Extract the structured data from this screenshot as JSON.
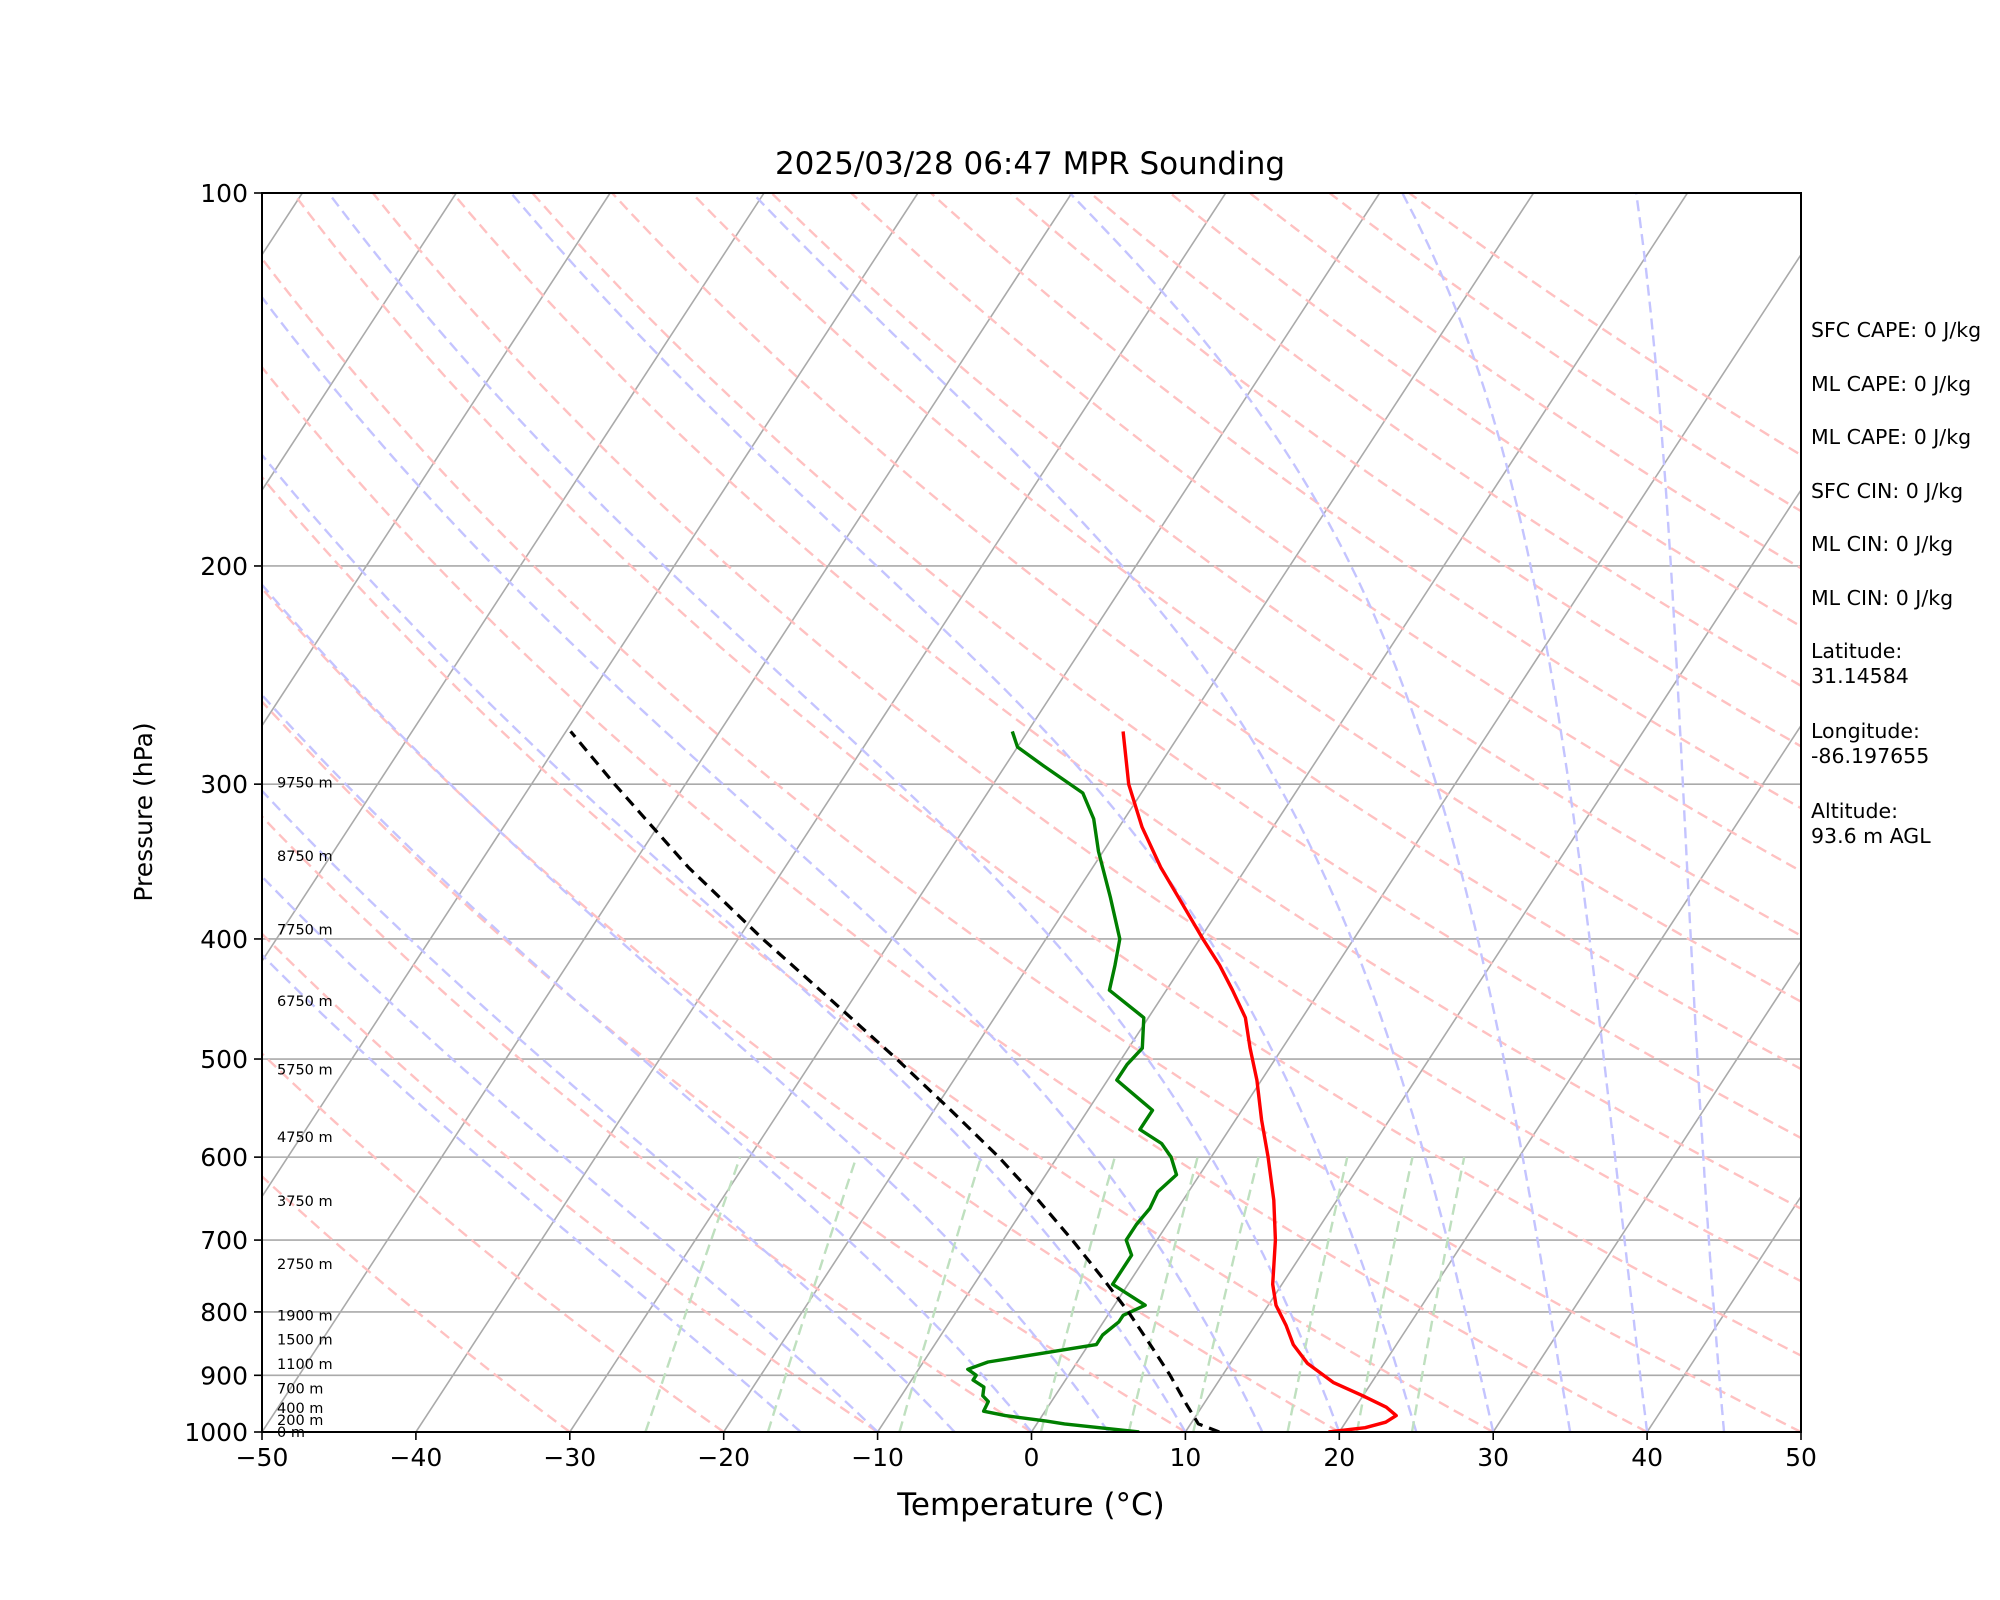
{
  "chart_data": {
    "type": "line",
    "title": "2025/03/28 06:47 MPR Sounding",
    "xlabel": "Temperature (°C)",
    "ylabel": "Pressure (hPa)",
    "xlim": [
      -50,
      50
    ],
    "ylim": [
      1000,
      100
    ],
    "y_scale": "log",
    "x_ticks": [
      "−50",
      "−40",
      "−30",
      "−20",
      "−10",
      "0",
      "10",
      "20",
      "30",
      "40",
      "50"
    ],
    "y_ticks": [
      100,
      200,
      300,
      400,
      500,
      600,
      700,
      800,
      900,
      1000
    ],
    "height_labels": [
      {
        "label": "0 m",
        "pressure": 1000
      },
      {
        "label": "200 m",
        "pressure": 978
      },
      {
        "label": "400 m",
        "pressure": 956
      },
      {
        "label": "700 m",
        "pressure": 922
      },
      {
        "label": "1100 m",
        "pressure": 881
      },
      {
        "label": "1500 m",
        "pressure": 842
      },
      {
        "label": "1900 m",
        "pressure": 805
      },
      {
        "label": "2750 m",
        "pressure": 732
      },
      {
        "label": "3750 m",
        "pressure": 651
      },
      {
        "label": "4750 m",
        "pressure": 578
      },
      {
        "label": "5750 m",
        "pressure": 510
      },
      {
        "label": "6750 m",
        "pressure": 449
      },
      {
        "label": "7750 m",
        "pressure": 393
      },
      {
        "label": "8750 m",
        "pressure": 343
      },
      {
        "label": "9750 m",
        "pressure": 299
      }
    ],
    "series": [
      {
        "color": "#ff0000",
        "points": [
          {
            "p": 1000,
            "t": 19.3
          },
          {
            "p": 992,
            "t": 21.5
          },
          {
            "p": 982,
            "t": 22.6
          },
          {
            "p": 970,
            "t": 23.0
          },
          {
            "p": 955,
            "t": 22.0
          },
          {
            "p": 935,
            "t": 20.0
          },
          {
            "p": 912,
            "t": 17.5
          },
          {
            "p": 880,
            "t": 15.0
          },
          {
            "p": 850,
            "t": 13.3
          },
          {
            "p": 820,
            "t": 12.0
          },
          {
            "p": 790,
            "t": 10.5
          },
          {
            "p": 760,
            "t": 9.4
          },
          {
            "p": 700,
            "t": 7.7
          },
          {
            "p": 650,
            "t": 5.9
          },
          {
            "p": 600,
            "t": 3.7
          },
          {
            "p": 560,
            "t": 1.7
          },
          {
            "p": 520,
            "t": -0.3
          },
          {
            "p": 490,
            "t": -2.1
          },
          {
            "p": 463,
            "t": -3.7
          },
          {
            "p": 440,
            "t": -5.7
          },
          {
            "p": 420,
            "t": -7.6
          },
          {
            "p": 400,
            "t": -9.8
          },
          {
            "p": 375,
            "t": -12.6
          },
          {
            "p": 350,
            "t": -15.6
          },
          {
            "p": 325,
            "t": -18.5
          },
          {
            "p": 300,
            "t": -21.2
          },
          {
            "p": 272,
            "t": -23.8
          }
        ]
      },
      {
        "color": "#007f00",
        "points": [
          {
            "p": 1000,
            "t": 7.0
          },
          {
            "p": 990,
            "t": 3.5
          },
          {
            "p": 985,
            "t": 1.8
          },
          {
            "p": 980,
            "t": 0.5
          },
          {
            "p": 970,
            "t": -2.4
          },
          {
            "p": 962,
            "t": -4.0
          },
          {
            "p": 945,
            "t": -4.1
          },
          {
            "p": 935,
            "t": -4.7
          },
          {
            "p": 920,
            "t": -5.0
          },
          {
            "p": 908,
            "t": -6.0
          },
          {
            "p": 900,
            "t": -6.0
          },
          {
            "p": 890,
            "t": -6.8
          },
          {
            "p": 878,
            "t": -5.8
          },
          {
            "p": 850,
            "t": 0.5
          },
          {
            "p": 835,
            "t": 0.5
          },
          {
            "p": 815,
            "t": 1.0
          },
          {
            "p": 805,
            "t": 1.0
          },
          {
            "p": 790,
            "t": 2.0
          },
          {
            "p": 760,
            "t": -1.0
          },
          {
            "p": 720,
            "t": -1.0
          },
          {
            "p": 700,
            "t": -2.0
          },
          {
            "p": 680,
            "t": -2.0
          },
          {
            "p": 660,
            "t": -1.8
          },
          {
            "p": 640,
            "t": -2.0
          },
          {
            "p": 620,
            "t": -1.5
          },
          {
            "p": 600,
            "t": -2.6
          },
          {
            "p": 585,
            "t": -3.8
          },
          {
            "p": 570,
            "t": -5.8
          },
          {
            "p": 550,
            "t": -5.8
          },
          {
            "p": 520,
            "t": -9.4
          },
          {
            "p": 505,
            "t": -9.4
          },
          {
            "p": 490,
            "t": -9.1
          },
          {
            "p": 463,
            "t": -10.3
          },
          {
            "p": 440,
            "t": -13.7
          },
          {
            "p": 420,
            "t": -14.4
          },
          {
            "p": 400,
            "t": -15.2
          },
          {
            "p": 370,
            "t": -17.6
          },
          {
            "p": 340,
            "t": -20.3
          },
          {
            "p": 320,
            "t": -22.0
          },
          {
            "p": 305,
            "t": -23.8
          },
          {
            "p": 290,
            "t": -27.5
          },
          {
            "p": 280,
            "t": -30.0
          },
          {
            "p": 272,
            "t": -31.0
          }
        ]
      },
      {
        "color": "#000000",
        "dashed": true,
        "points": [
          {
            "p": 1000,
            "t": 12.2
          },
          {
            "p": 985,
            "t": 10.5
          },
          {
            "p": 950,
            "t": 8.9
          },
          {
            "p": 900,
            "t": 6.6
          },
          {
            "p": 850,
            "t": 4.0
          },
          {
            "p": 800,
            "t": 1.2
          },
          {
            "p": 750,
            "t": -2.0
          },
          {
            "p": 700,
            "t": -5.5
          },
          {
            "p": 650,
            "t": -9.4
          },
          {
            "p": 600,
            "t": -13.8
          },
          {
            "p": 550,
            "t": -18.9
          },
          {
            "p": 500,
            "t": -24.6
          },
          {
            "p": 450,
            "t": -31.1
          },
          {
            "p": 400,
            "t": -38.4
          },
          {
            "p": 350,
            "t": -46.3
          },
          {
            "p": 300,
            "t": -54.6
          },
          {
            "p": 272,
            "t": -59.7
          }
        ]
      }
    ],
    "dry_adiabats_theta_c": [
      -30,
      -20,
      -10,
      0,
      10,
      20,
      30,
      40,
      50,
      60,
      70,
      80,
      90,
      100,
      110,
      120,
      130,
      140,
      150,
      160,
      170,
      180,
      190,
      200
    ],
    "moist_adiabats_start_c": [
      -15,
      -10,
      -5,
      0,
      5,
      10,
      15,
      20,
      25,
      30,
      35,
      40,
      45
    ],
    "mixing_ratio_lines_gkg": [
      0.5,
      1,
      2,
      4,
      6,
      8,
      12,
      16,
      20
    ],
    "grid": true,
    "colors": {
      "temperature": "#ff0000",
      "dewpoint": "#007f00",
      "parcel": "#000000",
      "isotherm": "#aaaaaa",
      "dry_adiabat": "#ffc1c1",
      "moist_adiabat": "#c4c4ff",
      "mixing_ratio": "#bfe0bf"
    }
  },
  "panel": {
    "lines": [
      "SFC CAPE: 0 J/kg",
      "ML CAPE: 0 J/kg",
      "ML CAPE: 0 J/kg",
      "SFC CIN: 0 J/kg",
      "ML CIN: 0 J/kg",
      "ML CIN: 0 J/kg"
    ],
    "latitude_label": "Latitude:",
    "latitude_value": "31.14584",
    "longitude_label": "Longitude:",
    "longitude_value": "-86.197655",
    "altitude_label": "Altitude:",
    "altitude_value": "93.6 m AGL"
  }
}
